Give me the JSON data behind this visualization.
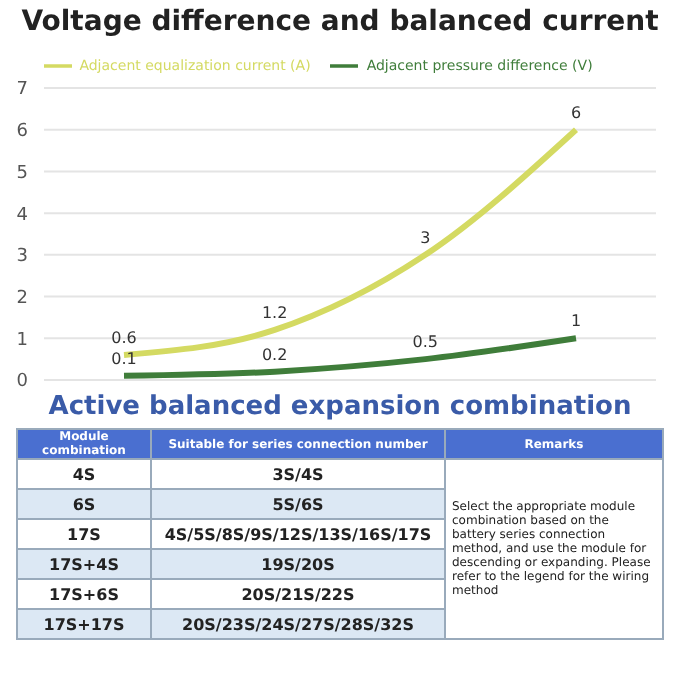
{
  "chart_data": [
    {
      "type": "line",
      "title": "Voltage difference and balanced current",
      "categories": [
        null,
        null,
        null,
        null
      ],
      "series": [
        {
          "name": "Adjacent pressure difference (V)",
          "color": "#3f7d3a",
          "values": [
            0.1,
            0.2,
            0.5,
            1
          ]
        },
        {
          "name": "Adjacent equalization current (A)",
          "color": "#d4da62",
          "values": [
            0.6,
            1.2,
            3,
            6
          ]
        }
      ],
      "ylim": [
        0,
        7
      ],
      "yticks": [
        0,
        1,
        2,
        3,
        4,
        5,
        6,
        7
      ],
      "grid": "y",
      "legend": "top",
      "tick_labels": "y",
      "data_labels": true,
      "marker": "none",
      "line_style": "solid"
    },
    {
      "type": "other",
      "title": "Active balanced expansion combination",
      "annotations": [
        "Module combination",
        "Suitable for series connection number",
        "Remarks",
        "4S",
        "3S/4S",
        "6S",
        "5S/6S",
        "17S",
        "4S/5S/8S/9S/12S/13S/16S/17S",
        "17S+4S",
        "19S/20S",
        "17S+6S",
        "20S/21S/22S",
        "17S+17S",
        "20S/23S/24S/27S/28S/32S",
        "Select the appropriate module combination based on the battery series connection method, and use the module for descending or expanding. Please refer to the legend for the wiring method"
      ]
    }
  ]
}
